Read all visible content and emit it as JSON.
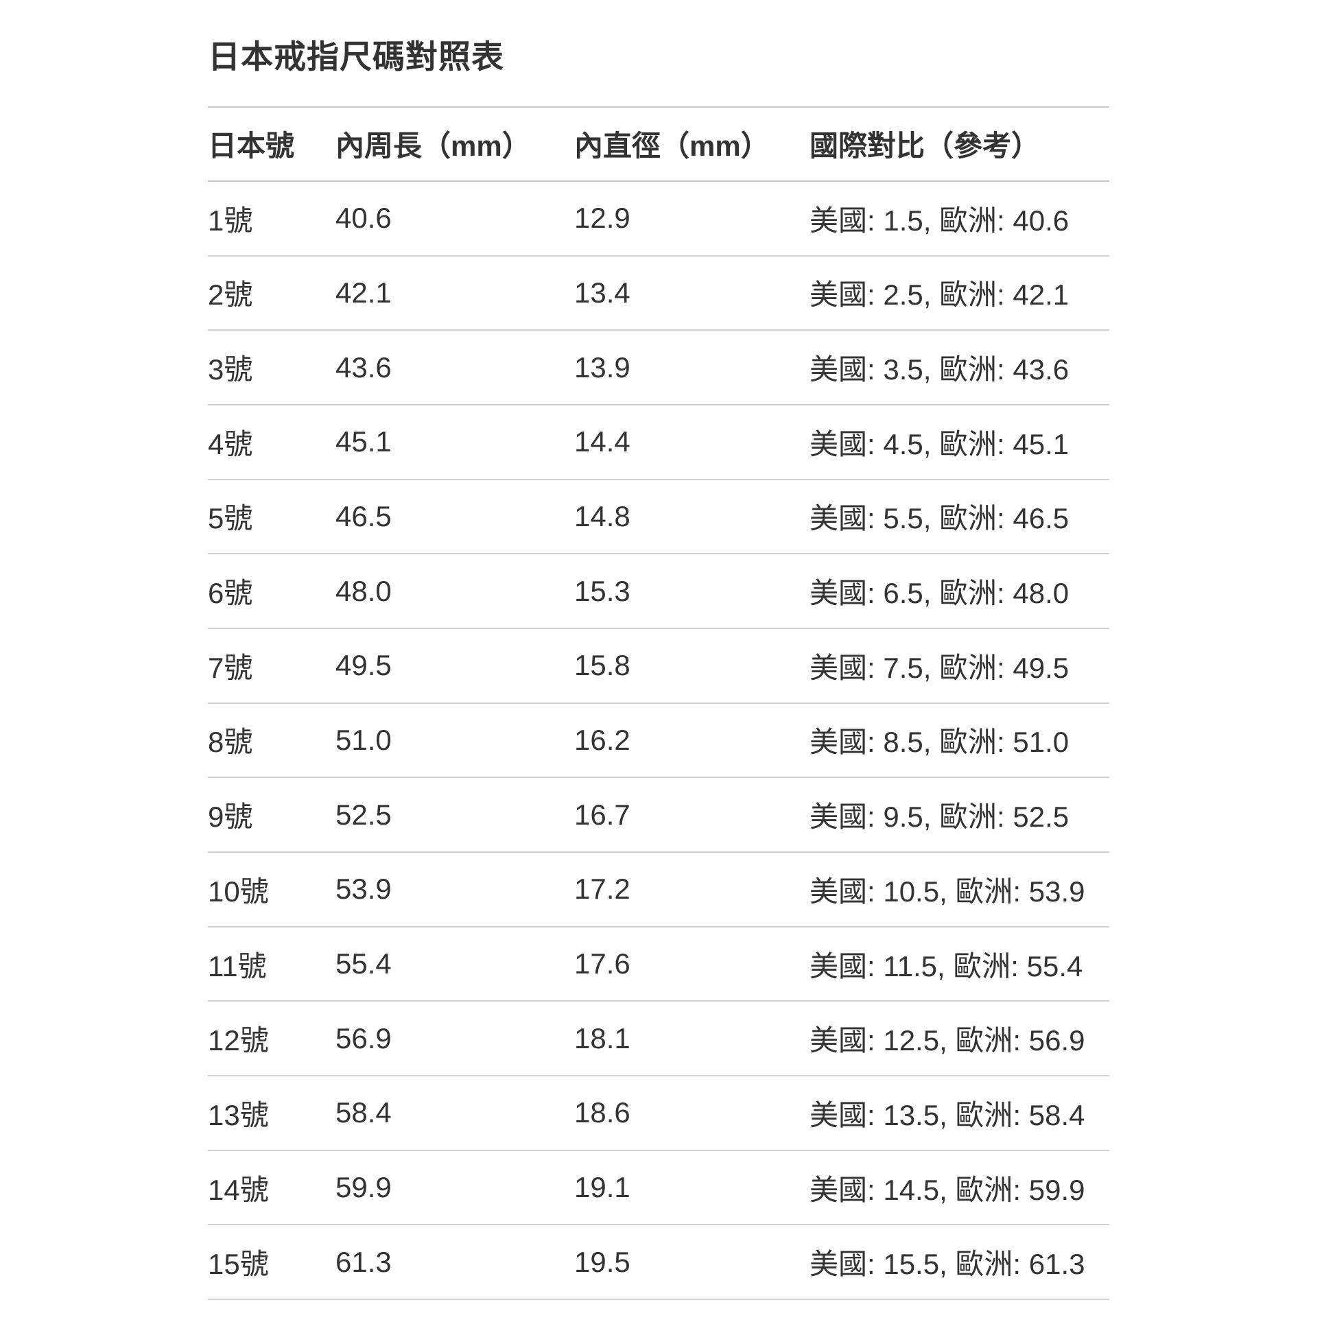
{
  "colors": {
    "background": "#ffffff",
    "text": "#333333",
    "divider": "#d2d2d2",
    "header_divider": "#c9c9c9"
  },
  "table": {
    "title": "日本戒指尺碼對照表",
    "columns": [
      "日本號",
      "內周長（mm）",
      "內直徑（mm）",
      "國際對比（參考）"
    ],
    "rows": [
      {
        "jp": "1號",
        "circumference": "40.6",
        "diameter": "12.9",
        "intl": "美國: 1.5, 歐洲: 40.6"
      },
      {
        "jp": "2號",
        "circumference": "42.1",
        "diameter": "13.4",
        "intl": "美國: 2.5, 歐洲: 42.1"
      },
      {
        "jp": "3號",
        "circumference": "43.6",
        "diameter": "13.9",
        "intl": "美國: 3.5, 歐洲: 43.6"
      },
      {
        "jp": "4號",
        "circumference": "45.1",
        "diameter": "14.4",
        "intl": "美國: 4.5, 歐洲: 45.1"
      },
      {
        "jp": "5號",
        "circumference": "46.5",
        "diameter": "14.8",
        "intl": "美國: 5.5, 歐洲: 46.5"
      },
      {
        "jp": "6號",
        "circumference": "48.0",
        "diameter": "15.3",
        "intl": "美國: 6.5, 歐洲: 48.0"
      },
      {
        "jp": "7號",
        "circumference": "49.5",
        "diameter": "15.8",
        "intl": "美國: 7.5, 歐洲: 49.5"
      },
      {
        "jp": "8號",
        "circumference": "51.0",
        "diameter": "16.2",
        "intl": "美國: 8.5, 歐洲: 51.0"
      },
      {
        "jp": "9號",
        "circumference": "52.5",
        "diameter": "16.7",
        "intl": "美國: 9.5, 歐洲: 52.5"
      },
      {
        "jp": "10號",
        "circumference": "53.9",
        "diameter": "17.2",
        "intl": "美國: 10.5, 歐洲: 53.9"
      },
      {
        "jp": "11號",
        "circumference": "55.4",
        "diameter": "17.6",
        "intl": "美國: 11.5, 歐洲: 55.4"
      },
      {
        "jp": "12號",
        "circumference": "56.9",
        "diameter": "18.1",
        "intl": "美國: 12.5, 歐洲: 56.9"
      },
      {
        "jp": "13號",
        "circumference": "58.4",
        "diameter": "18.6",
        "intl": "美國: 13.5, 歐洲: 58.4"
      },
      {
        "jp": "14號",
        "circumference": "59.9",
        "diameter": "19.1",
        "intl": "美國: 14.5, 歐洲: 59.9"
      },
      {
        "jp": "15號",
        "circumference": "61.3",
        "diameter": "19.5",
        "intl": "美國: 15.5, 歐洲: 61.3"
      }
    ]
  }
}
